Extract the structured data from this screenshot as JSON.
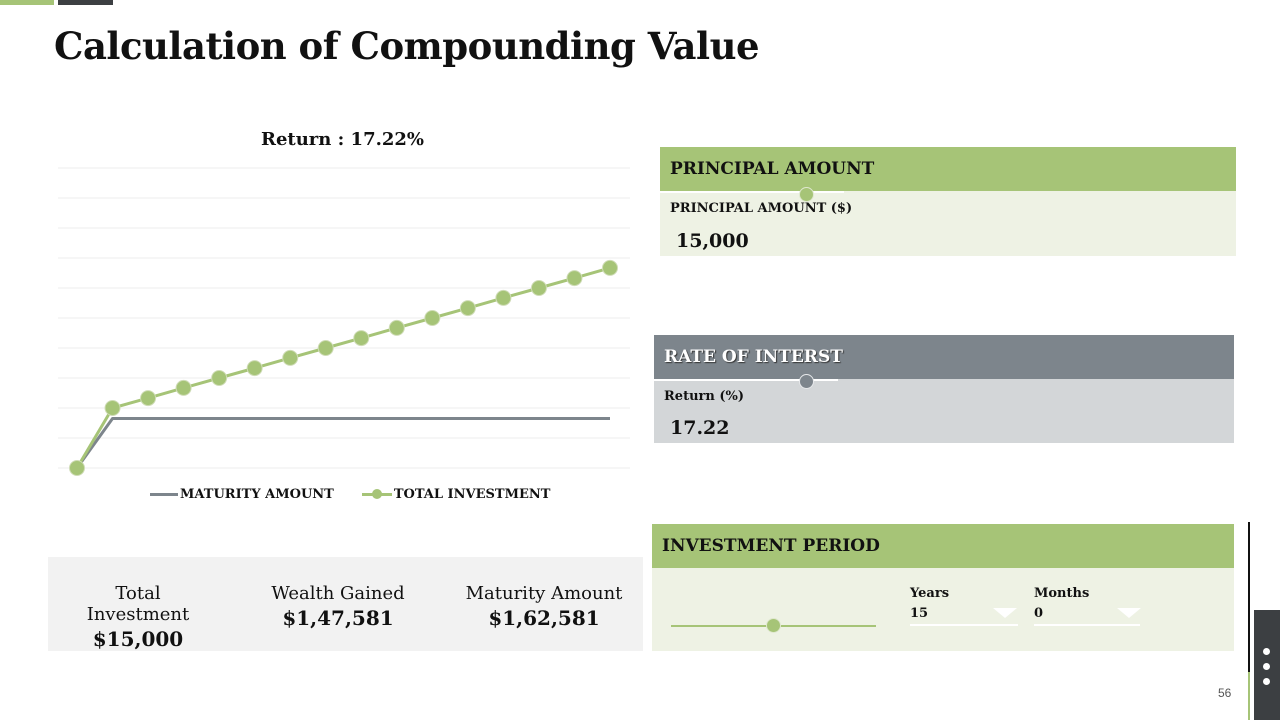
{
  "slide": {
    "title": "Calculation of Compounding Value",
    "page_number": "56"
  },
  "chart_data": {
    "type": "line",
    "title": "Return : 17.22%",
    "x": [
      0,
      1,
      2,
      3,
      4,
      5,
      6,
      7,
      8,
      9,
      10,
      11,
      12,
      13,
      14,
      15
    ],
    "ylim": [
      0,
      100
    ],
    "grid": true,
    "legend_position": "bottom",
    "series": [
      {
        "name": "MATURITY AMOUNT",
        "color": "#7d858c",
        "markers": false,
        "values": [
          0,
          16.5,
          16.5,
          16.5,
          16.5,
          16.5,
          16.5,
          16.5,
          16.5,
          16.5,
          16.5,
          16.5,
          16.5,
          16.5,
          16.5,
          16.5
        ]
      },
      {
        "name": "TOTAL INVESTMENT",
        "color": "#a6c477",
        "markers": true,
        "values": [
          0,
          20,
          23.3,
          26.7,
          30,
          33.3,
          36.7,
          40,
          43.3,
          46.7,
          50,
          53.3,
          56.7,
          60,
          63.3,
          66.7
        ]
      }
    ]
  },
  "summary": {
    "total_investment_label": "Total Investment",
    "total_investment_value": "$15,000",
    "wealth_gained_label": "Wealth Gained",
    "wealth_gained_value": "$1,47,581",
    "maturity_amount_label": "Maturity Amount",
    "maturity_amount_value": "$1,62,581"
  },
  "principal": {
    "heading": "PRINCIPAL AMOUNT",
    "field_label": "PRINCIPAL AMOUNT ($)",
    "value": "15,000"
  },
  "rate": {
    "heading": "RATE OF INTERST",
    "field_label": "Return (%)",
    "value": "17.22"
  },
  "period": {
    "heading": "INVESTMENT PERIOD",
    "years_label": "Years",
    "years_value": "15",
    "months_label": "Months",
    "months_value": "0"
  },
  "colors": {
    "accent_green": "#a6c477",
    "accent_gray": "#7d858c",
    "dark": "#3c3f42"
  }
}
